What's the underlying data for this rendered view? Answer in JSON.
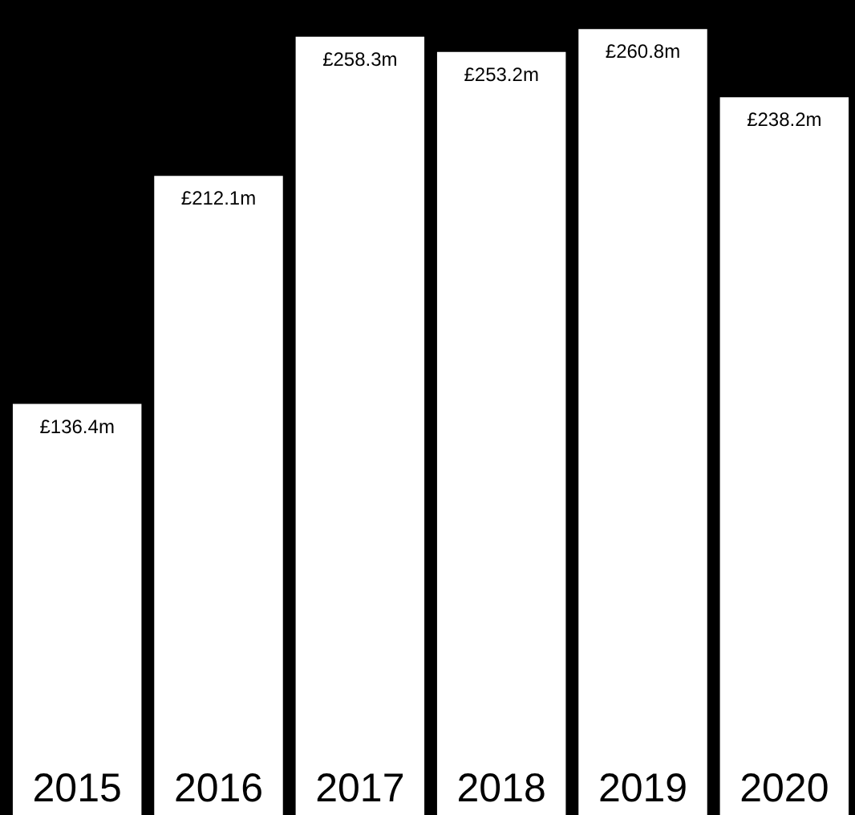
{
  "chart_data": {
    "type": "bar",
    "categories": [
      "2015",
      "2016",
      "2017",
      "2018",
      "2019",
      "2020"
    ],
    "values": [
      136.4,
      212.1,
      258.3,
      253.2,
      260.8,
      238.2
    ],
    "value_labels": [
      "£136.4m",
      "£212.1m",
      "£258.3m",
      "£253.2m",
      "£260.8m",
      "£238.2m"
    ],
    "color": "#ffffff"
  }
}
